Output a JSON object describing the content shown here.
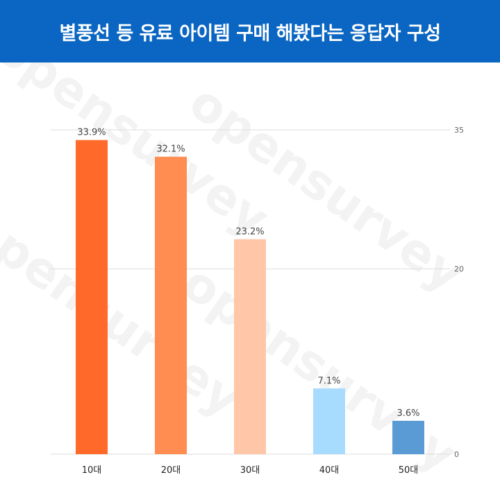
{
  "header": {
    "title": "별풍선 등 유료 아이템 구매 해봤다는 응답자 구성"
  },
  "watermark": {
    "text": "opensurvey"
  },
  "colors": {
    "header_bg": "#0a66c2",
    "grid": "#dddddd"
  },
  "chart_data": {
    "type": "bar",
    "title": "별풍선 등 유료 아이템 구매 해봤다는 응답자 구성",
    "categories": [
      "10대",
      "20대",
      "30대",
      "40대",
      "50대"
    ],
    "values": [
      33.9,
      32.1,
      23.2,
      7.1,
      3.6
    ],
    "value_labels": [
      "33.9%",
      "32.1%",
      "23.2%",
      "7.1%",
      "3.6%"
    ],
    "bar_colors": [
      "#ff6a2a",
      "#ff8c50",
      "#ffc6a8",
      "#a8dcff",
      "#5b9bd5"
    ],
    "xlabel": "",
    "ylabel": "",
    "ylim": [
      0,
      35
    ],
    "yticks": [
      0,
      20,
      35
    ],
    "ytick_labels": [
      "0",
      "20",
      "35"
    ],
    "grid": true,
    "yaxis_position": "right",
    "legend": "none"
  }
}
